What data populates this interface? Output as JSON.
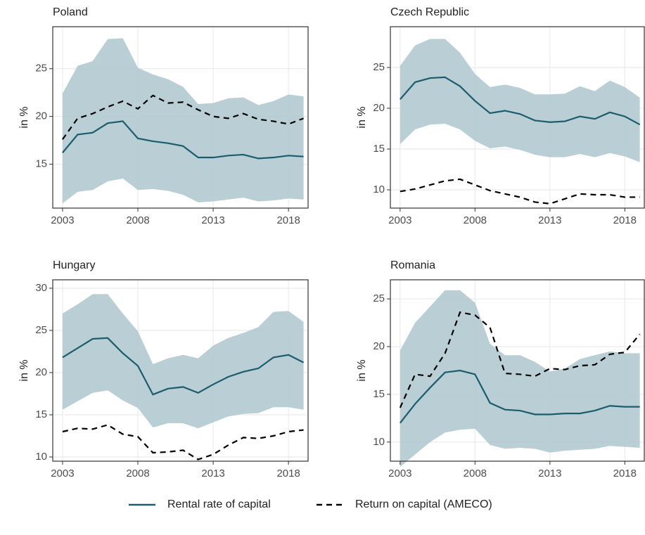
{
  "chart_data": [
    {
      "type": "line",
      "title": "Poland",
      "y_label": "in %",
      "x": [
        2003,
        2004,
        2005,
        2006,
        2007,
        2008,
        2009,
        2010,
        2011,
        2012,
        2013,
        2014,
        2015,
        2016,
        2017,
        2018,
        2019
      ],
      "series": [
        {
          "name": "Rental rate of capital",
          "color": "#1b5c6e",
          "dash": "solid",
          "values": [
            16.2,
            18.1,
            18.3,
            19.3,
            19.5,
            17.7,
            17.4,
            17.2,
            16.9,
            15.7,
            15.7,
            15.9,
            16.0,
            15.6,
            15.7,
            15.9,
            15.8
          ]
        },
        {
          "name": "Return on capital (AMECO)",
          "color": "#000000",
          "dash": "dashed",
          "values": [
            17.6,
            19.8,
            20.3,
            21.0,
            21.6,
            20.8,
            22.2,
            21.4,
            21.5,
            20.7,
            20.0,
            19.8,
            20.3,
            19.7,
            19.5,
            19.2,
            19.8
          ]
        }
      ],
      "band": {
        "color": "#b1c9d0",
        "upper": [
          22.4,
          25.3,
          25.8,
          28.1,
          28.2,
          25.1,
          24.4,
          23.9,
          23.1,
          21.3,
          21.4,
          21.9,
          22.0,
          21.2,
          21.6,
          22.3,
          22.1
        ],
        "lower": [
          10.9,
          12.1,
          12.3,
          13.2,
          13.5,
          12.3,
          12.4,
          12.2,
          11.8,
          11.0,
          11.1,
          11.3,
          11.5,
          11.1,
          11.2,
          11.4,
          11.3
        ]
      },
      "xlim": [
        2002.35,
        2019.3
      ],
      "xticks": [
        2003,
        2008,
        2013,
        2018
      ],
      "ylim": [
        10.4,
        29.4
      ],
      "yticks": [
        15,
        20,
        25
      ],
      "grid": true
    },
    {
      "type": "line",
      "title": "Czech Republic",
      "y_label": "in %",
      "x": [
        2003,
        2004,
        2005,
        2006,
        2007,
        2008,
        2009,
        2010,
        2011,
        2012,
        2013,
        2014,
        2015,
        2016,
        2017,
        2018,
        2019
      ],
      "series": [
        {
          "name": "Rental rate of capital",
          "color": "#1b5c6e",
          "dash": "solid",
          "values": [
            21.1,
            23.2,
            23.7,
            23.8,
            22.7,
            20.9,
            19.4,
            19.7,
            19.3,
            18.5,
            18.3,
            18.4,
            19.0,
            18.7,
            19.5,
            19.0,
            18.0
          ]
        },
        {
          "name": "Return on capital (AMECO)",
          "color": "#000000",
          "dash": "dashed",
          "values": [
            9.8,
            10.1,
            10.6,
            11.1,
            11.3,
            10.6,
            9.9,
            9.5,
            9.1,
            8.5,
            8.3,
            8.9,
            9.5,
            9.4,
            9.4,
            9.1,
            9.1
          ]
        }
      ],
      "band": {
        "color": "#b1c9d0",
        "upper": [
          25.2,
          27.7,
          28.5,
          28.5,
          26.8,
          24.2,
          22.6,
          22.9,
          22.5,
          21.7,
          21.7,
          21.8,
          22.7,
          22.1,
          23.4,
          22.6,
          21.3
        ],
        "lower": [
          15.6,
          17.4,
          18.0,
          18.1,
          17.4,
          16.0,
          15.1,
          15.3,
          14.9,
          14.3,
          14.0,
          14.0,
          14.4,
          14.0,
          14.5,
          14.1,
          13.4
        ]
      },
      "xlim": [
        2002.35,
        2019.3
      ],
      "xticks": [
        2003,
        2008,
        2013,
        2018
      ],
      "ylim": [
        7.76,
        30
      ],
      "yticks": [
        10,
        15,
        20,
        25
      ],
      "grid": true
    },
    {
      "type": "line",
      "title": "Hungary",
      "y_label": "in %",
      "x": [
        2003,
        2004,
        2005,
        2006,
        2007,
        2008,
        2009,
        2010,
        2011,
        2012,
        2013,
        2014,
        2015,
        2016,
        2017,
        2018,
        2019
      ],
      "series": [
        {
          "name": "Rental rate of capital",
          "color": "#1b5c6e",
          "dash": "solid",
          "values": [
            21.8,
            22.9,
            24.0,
            24.1,
            22.3,
            20.8,
            17.4,
            18.1,
            18.3,
            17.6,
            18.6,
            19.5,
            20.1,
            20.5,
            21.8,
            22.1,
            21.2
          ]
        },
        {
          "name": "Return on capital (AMECO)",
          "color": "#000000",
          "dash": "dashed",
          "values": [
            13.0,
            13.4,
            13.3,
            13.8,
            12.7,
            12.4,
            10.5,
            10.6,
            10.8,
            9.7,
            10.3,
            11.4,
            12.3,
            12.2,
            12.5,
            13.0,
            13.2
          ]
        }
      ],
      "band": {
        "color": "#b1c9d0",
        "upper": [
          27.0,
          28.1,
          29.3,
          29.3,
          27.0,
          24.9,
          21.0,
          21.7,
          22.1,
          21.7,
          23.2,
          24.1,
          24.7,
          25.4,
          27.2,
          27.3,
          26.0
        ],
        "lower": [
          15.6,
          16.6,
          17.6,
          17.9,
          16.7,
          15.8,
          13.5,
          14.0,
          14.0,
          13.4,
          14.1,
          14.8,
          15.1,
          15.2,
          15.9,
          15.9,
          15.6
        ]
      },
      "xlim": [
        2002.35,
        2019.3
      ],
      "xticks": [
        2003,
        2008,
        2013,
        2018
      ],
      "ylim": [
        9.5,
        31
      ],
      "yticks": [
        10,
        15,
        20,
        25,
        30
      ],
      "grid": true
    },
    {
      "type": "line",
      "title": "Romania",
      "y_label": "in %",
      "x": [
        2003,
        2004,
        2005,
        2006,
        2007,
        2008,
        2009,
        2010,
        2011,
        2012,
        2013,
        2014,
        2015,
        2016,
        2017,
        2018,
        2019
      ],
      "series": [
        {
          "name": "Rental rate of capital",
          "color": "#1b5c6e",
          "dash": "solid",
          "values": [
            12.0,
            14.0,
            15.7,
            17.3,
            17.5,
            17.1,
            14.1,
            13.4,
            13.3,
            12.9,
            12.9,
            13.0,
            13.0,
            13.3,
            13.8,
            13.7,
            13.7
          ]
        },
        {
          "name": "Return on capital (AMECO)",
          "color": "#000000",
          "dash": "dashed",
          "values": [
            13.6,
            17.1,
            16.9,
            19.3,
            23.6,
            23.3,
            22.0,
            17.2,
            17.1,
            16.9,
            17.7,
            17.6,
            18.0,
            18.1,
            19.2,
            19.4,
            21.3
          ]
        }
      ],
      "band": {
        "color": "#b1c9d0",
        "upper": [
          19.6,
          22.5,
          24.2,
          25.9,
          25.9,
          24.6,
          20.3,
          19.1,
          19.1,
          18.4,
          17.4,
          17.7,
          18.7,
          19.1,
          19.5,
          19.3,
          19.3
        ],
        "lower": [
          7.4,
          8.7,
          10.0,
          11.0,
          11.3,
          11.4,
          9.7,
          9.3,
          9.4,
          9.3,
          8.9,
          9.1,
          9.2,
          9.3,
          9.6,
          9.5,
          9.4
        ]
      },
      "xlim": [
        2002.35,
        2019.3
      ],
      "xticks": [
        2003,
        2008,
        2013,
        2018
      ],
      "ylim": [
        8.0,
        27.0
      ],
      "yticks": [
        10,
        15,
        20,
        25
      ],
      "grid": true
    }
  ]
}
